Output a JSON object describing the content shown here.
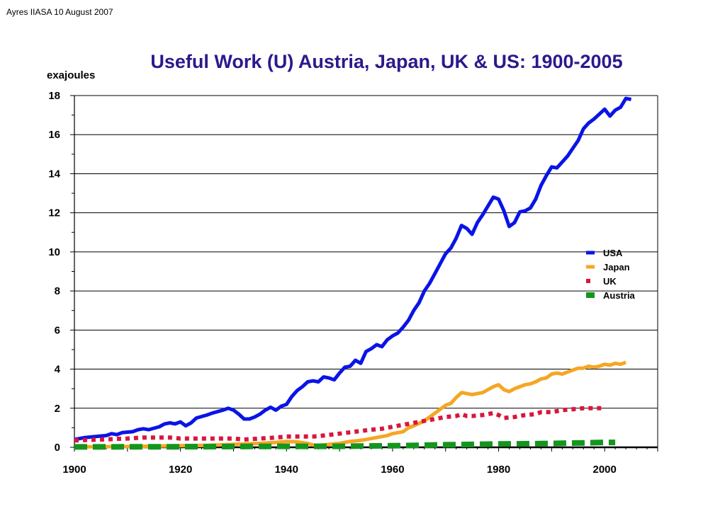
{
  "header": {
    "credit": "Ayres IIASA 10 August 2007"
  },
  "chart_data": {
    "type": "line",
    "title": "Useful Work (U) Austria, Japan, UK & US: 1900-2005",
    "ylabel": "exajoules",
    "xlabel": "",
    "xlim": [
      1900,
      2010
    ],
    "ylim": [
      0,
      18
    ],
    "x_ticks": [
      1900,
      1920,
      1940,
      1960,
      1980,
      2000
    ],
    "y_ticks": [
      0,
      2,
      4,
      6,
      8,
      10,
      12,
      14,
      16,
      18
    ],
    "grid": "horizontal",
    "legend_position": "right",
    "series": [
      {
        "name": "USA",
        "color": "#0a14e6",
        "style": "solid",
        "points": [
          [
            1900,
            0.4
          ],
          [
            1902,
            0.5
          ],
          [
            1904,
            0.55
          ],
          [
            1906,
            0.6
          ],
          [
            1907,
            0.7
          ],
          [
            1908,
            0.65
          ],
          [
            1909,
            0.75
          ],
          [
            1911,
            0.8
          ],
          [
            1912,
            0.9
          ],
          [
            1913,
            0.95
          ],
          [
            1914,
            0.9
          ],
          [
            1916,
            1.05
          ],
          [
            1917,
            1.2
          ],
          [
            1918,
            1.25
          ],
          [
            1919,
            1.2
          ],
          [
            1920,
            1.3
          ],
          [
            1921,
            1.1
          ],
          [
            1922,
            1.25
          ],
          [
            1923,
            1.5
          ],
          [
            1925,
            1.65
          ],
          [
            1926,
            1.75
          ],
          [
            1928,
            1.9
          ],
          [
            1929,
            2.0
          ],
          [
            1930,
            1.9
          ],
          [
            1931,
            1.7
          ],
          [
            1932,
            1.45
          ],
          [
            1933,
            1.45
          ],
          [
            1934,
            1.55
          ],
          [
            1935,
            1.7
          ],
          [
            1936,
            1.9
          ],
          [
            1937,
            2.05
          ],
          [
            1938,
            1.9
          ],
          [
            1939,
            2.1
          ],
          [
            1940,
            2.2
          ],
          [
            1941,
            2.6
          ],
          [
            1942,
            2.9
          ],
          [
            1943,
            3.1
          ],
          [
            1944,
            3.35
          ],
          [
            1945,
            3.4
          ],
          [
            1946,
            3.35
          ],
          [
            1947,
            3.6
          ],
          [
            1948,
            3.55
          ],
          [
            1949,
            3.45
          ],
          [
            1950,
            3.8
          ],
          [
            1951,
            4.1
          ],
          [
            1952,
            4.15
          ],
          [
            1953,
            4.45
          ],
          [
            1954,
            4.3
          ],
          [
            1955,
            4.9
          ],
          [
            1956,
            5.05
          ],
          [
            1957,
            5.25
          ],
          [
            1958,
            5.15
          ],
          [
            1959,
            5.5
          ],
          [
            1960,
            5.7
          ],
          [
            1961,
            5.85
          ],
          [
            1962,
            6.15
          ],
          [
            1963,
            6.5
          ],
          [
            1964,
            7.0
          ],
          [
            1965,
            7.4
          ],
          [
            1966,
            8.0
          ],
          [
            1967,
            8.4
          ],
          [
            1968,
            8.9
          ],
          [
            1969,
            9.4
          ],
          [
            1970,
            9.9
          ],
          [
            1971,
            10.2
          ],
          [
            1972,
            10.7
          ],
          [
            1973,
            11.35
          ],
          [
            1974,
            11.2
          ],
          [
            1975,
            10.9
          ],
          [
            1976,
            11.5
          ],
          [
            1977,
            11.9
          ],
          [
            1978,
            12.35
          ],
          [
            1979,
            12.8
          ],
          [
            1980,
            12.7
          ],
          [
            1981,
            12.1
          ],
          [
            1982,
            11.3
          ],
          [
            1983,
            11.5
          ],
          [
            1984,
            12.05
          ],
          [
            1985,
            12.1
          ],
          [
            1986,
            12.25
          ],
          [
            1987,
            12.7
          ],
          [
            1988,
            13.4
          ],
          [
            1989,
            13.9
          ],
          [
            1990,
            14.35
          ],
          [
            1991,
            14.3
          ],
          [
            1992,
            14.6
          ],
          [
            1993,
            14.9
          ],
          [
            1994,
            15.3
          ],
          [
            1995,
            15.7
          ],
          [
            1996,
            16.3
          ],
          [
            1997,
            16.6
          ],
          [
            1998,
            16.8
          ],
          [
            1999,
            17.05
          ],
          [
            2000,
            17.3
          ],
          [
            2001,
            16.95
          ],
          [
            2002,
            17.25
          ],
          [
            2003,
            17.4
          ],
          [
            2004,
            17.85
          ],
          [
            2005,
            17.8
          ]
        ]
      },
      {
        "name": "Japan",
        "color": "#f5a623",
        "style": "solid",
        "points": [
          [
            1900,
            0.02
          ],
          [
            1910,
            0.04
          ],
          [
            1920,
            0.08
          ],
          [
            1925,
            0.1
          ],
          [
            1930,
            0.15
          ],
          [
            1935,
            0.2
          ],
          [
            1938,
            0.25
          ],
          [
            1940,
            0.3
          ],
          [
            1942,
            0.28
          ],
          [
            1944,
            0.2
          ],
          [
            1945,
            0.12
          ],
          [
            1946,
            0.1
          ],
          [
            1948,
            0.15
          ],
          [
            1950,
            0.2
          ],
          [
            1952,
            0.3
          ],
          [
            1954,
            0.35
          ],
          [
            1956,
            0.45
          ],
          [
            1958,
            0.55
          ],
          [
            1959,
            0.6
          ],
          [
            1960,
            0.7
          ],
          [
            1962,
            0.8
          ],
          [
            1963,
            1.0
          ],
          [
            1964,
            1.1
          ],
          [
            1966,
            1.35
          ],
          [
            1967,
            1.55
          ],
          [
            1968,
            1.75
          ],
          [
            1969,
            1.95
          ],
          [
            1970,
            2.15
          ],
          [
            1971,
            2.25
          ],
          [
            1972,
            2.55
          ],
          [
            1973,
            2.8
          ],
          [
            1974,
            2.75
          ],
          [
            1975,
            2.7
          ],
          [
            1976,
            2.75
          ],
          [
            1977,
            2.8
          ],
          [
            1978,
            2.95
          ],
          [
            1979,
            3.1
          ],
          [
            1980,
            3.2
          ],
          [
            1981,
            2.95
          ],
          [
            1982,
            2.85
          ],
          [
            1983,
            3.0
          ],
          [
            1984,
            3.1
          ],
          [
            1985,
            3.2
          ],
          [
            1986,
            3.25
          ],
          [
            1987,
            3.35
          ],
          [
            1988,
            3.5
          ],
          [
            1989,
            3.55
          ],
          [
            1990,
            3.75
          ],
          [
            1991,
            3.8
          ],
          [
            1992,
            3.75
          ],
          [
            1993,
            3.85
          ],
          [
            1994,
            3.95
          ],
          [
            1995,
            4.05
          ],
          [
            1996,
            4.05
          ],
          [
            1997,
            4.15
          ],
          [
            1998,
            4.1
          ],
          [
            1999,
            4.15
          ],
          [
            2000,
            4.25
          ],
          [
            2001,
            4.2
          ],
          [
            2002,
            4.3
          ],
          [
            2003,
            4.25
          ],
          [
            2004,
            4.35
          ]
        ]
      },
      {
        "name": "UK",
        "color": "#d9163c",
        "style": "dotted",
        "points": [
          [
            1900,
            0.35
          ],
          [
            1905,
            0.4
          ],
          [
            1910,
            0.45
          ],
          [
            1913,
            0.5
          ],
          [
            1915,
            0.5
          ],
          [
            1918,
            0.5
          ],
          [
            1920,
            0.45
          ],
          [
            1925,
            0.45
          ],
          [
            1927,
            0.45
          ],
          [
            1930,
            0.45
          ],
          [
            1932,
            0.4
          ],
          [
            1935,
            0.45
          ],
          [
            1938,
            0.5
          ],
          [
            1940,
            0.55
          ],
          [
            1945,
            0.55
          ],
          [
            1947,
            0.6
          ],
          [
            1950,
            0.7
          ],
          [
            1953,
            0.8
          ],
          [
            1956,
            0.9
          ],
          [
            1958,
            0.95
          ],
          [
            1960,
            1.05
          ],
          [
            1962,
            1.15
          ],
          [
            1964,
            1.25
          ],
          [
            1966,
            1.35
          ],
          [
            1968,
            1.45
          ],
          [
            1970,
            1.55
          ],
          [
            1972,
            1.6
          ],
          [
            1973,
            1.7
          ],
          [
            1974,
            1.6
          ],
          [
            1975,
            1.6
          ],
          [
            1977,
            1.65
          ],
          [
            1979,
            1.75
          ],
          [
            1980,
            1.65
          ],
          [
            1981,
            1.5
          ],
          [
            1983,
            1.55
          ],
          [
            1985,
            1.65
          ],
          [
            1987,
            1.7
          ],
          [
            1988,
            1.8
          ],
          [
            1990,
            1.8
          ],
          [
            1992,
            1.9
          ],
          [
            1994,
            1.95
          ],
          [
            1996,
            2.0
          ],
          [
            1998,
            2.0
          ],
          [
            2000,
            2.0
          ]
        ]
      },
      {
        "name": "Austria",
        "color": "#14961e",
        "style": "dashed",
        "points": [
          [
            1900,
            0.02
          ],
          [
            1920,
            0.03
          ],
          [
            1940,
            0.05
          ],
          [
            1950,
            0.05
          ],
          [
            1955,
            0.07
          ],
          [
            1960,
            0.08
          ],
          [
            1965,
            0.1
          ],
          [
            1970,
            0.13
          ],
          [
            1975,
            0.15
          ],
          [
            1980,
            0.17
          ],
          [
            1985,
            0.18
          ],
          [
            1990,
            0.2
          ],
          [
            1995,
            0.22
          ],
          [
            2000,
            0.25
          ],
          [
            2002,
            0.25
          ]
        ]
      }
    ]
  }
}
